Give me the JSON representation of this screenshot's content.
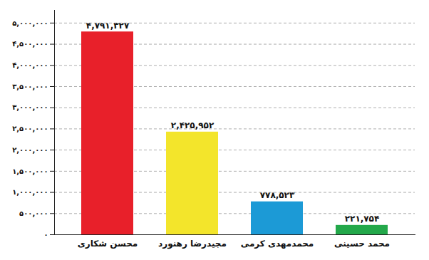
{
  "chart_data": {
    "type": "bar",
    "categories": [
      "محسن شکاری",
      "مجیدرضا رهنورد",
      "محمدمهدی کرمی",
      "محمد حسینی"
    ],
    "values": [
      4791327,
      2425952,
      778523,
      221754
    ],
    "value_labels": [
      "۴,۷۹۱,۳۲۷",
      "۲,۴۲۵,۹۵۲",
      "۷۷۸,۵۲۳",
      "۲۲۱,۷۵۴"
    ],
    "colors": [
      "#e8202a",
      "#f3e52b",
      "#1c9ad6",
      "#23a84a"
    ],
    "ylim": [
      0,
      5300000
    ],
    "yticks": [
      {
        "value": 0,
        "label": "۰"
      },
      {
        "value": 500000,
        "label": "۵۰۰,۰۰۰"
      },
      {
        "value": 1000000,
        "label": "۱,۰۰۰,۰۰۰"
      },
      {
        "value": 1500000,
        "label": "۱,۵۰۰,۰۰۰"
      },
      {
        "value": 2000000,
        "label": "۲,۰۰۰,۰۰۰"
      },
      {
        "value": 2500000,
        "label": "۲,۵۰۰,۰۰۰"
      },
      {
        "value": 3000000,
        "label": "۳,۰۰۰,۰۰۰"
      },
      {
        "value": 3500000,
        "label": "۳,۵۰۰,۰۰۰"
      },
      {
        "value": 4000000,
        "label": "۴,۰۰۰,۰۰۰"
      },
      {
        "value": 4500000,
        "label": "۴,۵۰۰,۰۰۰"
      },
      {
        "value": 5000000,
        "label": "۵,۰۰۰,۰۰۰"
      }
    ],
    "grid": true,
    "data_labels": true
  }
}
